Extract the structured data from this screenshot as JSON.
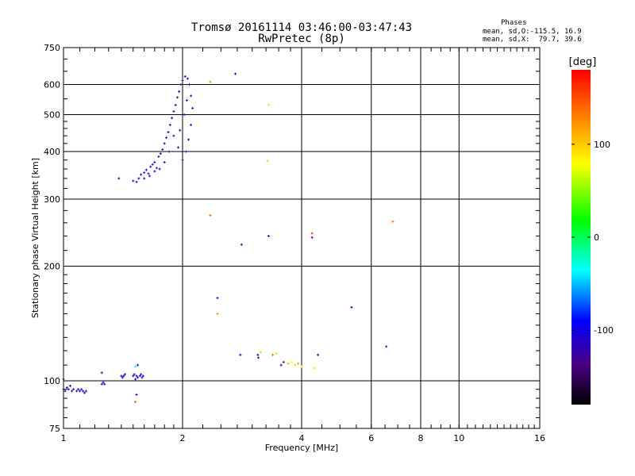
{
  "chart_data": {
    "type": "scatter",
    "title": "Tromsø 20161114 03:46:00-03:47:43",
    "subtitle": "RwPretec (8p)",
    "xlabel": "Frequency [MHz]",
    "ylabel": "Stationary phase Virtual Height [km]",
    "xscale": "log2",
    "yscale": "log",
    "xlim": [
      1,
      16
    ],
    "ylim": [
      75,
      750
    ],
    "x_ticks": [
      1,
      2,
      4,
      6,
      8,
      10,
      16
    ],
    "y_ticks": [
      75,
      100,
      200,
      300,
      400,
      500,
      600,
      750
    ],
    "grid": true,
    "phase_stats": {
      "heading": "Phases",
      "o_mode": "mean, sd,O:-115.5, 16.9",
      "x_mode": "mean, sd,X:  79.7, 39.6"
    },
    "colorbar": {
      "label": "[deg]",
      "range": [
        -180,
        180
      ],
      "ticks": [
        -100,
        0,
        100
      ]
    },
    "points": [
      {
        "x": 1.0,
        "y": 95,
        "phase": -110
      },
      {
        "x": 1.01,
        "y": 94,
        "phase": -115
      },
      {
        "x": 1.02,
        "y": 96,
        "phase": -112
      },
      {
        "x": 1.03,
        "y": 95,
        "phase": -118
      },
      {
        "x": 1.05,
        "y": 94,
        "phase": -110
      },
      {
        "x": 1.06,
        "y": 95,
        "phase": -120
      },
      {
        "x": 1.08,
        "y": 94,
        "phase": -114
      },
      {
        "x": 1.09,
        "y": 95,
        "phase": -116
      },
      {
        "x": 1.1,
        "y": 94,
        "phase": -112
      },
      {
        "x": 1.11,
        "y": 95,
        "phase": -118
      },
      {
        "x": 1.12,
        "y": 94,
        "phase": -110
      },
      {
        "x": 1.13,
        "y": 93,
        "phase": -115
      },
      {
        "x": 1.14,
        "y": 94,
        "phase": -117
      },
      {
        "x": 1.0,
        "y": 101,
        "phase": -120
      },
      {
        "x": 1.04,
        "y": 97,
        "phase": -105
      },
      {
        "x": 1.25,
        "y": 98,
        "phase": -115
      },
      {
        "x": 1.26,
        "y": 99,
        "phase": -120
      },
      {
        "x": 1.27,
        "y": 98,
        "phase": -112
      },
      {
        "x": 1.25,
        "y": 105,
        "phase": -110
      },
      {
        "x": 1.4,
        "y": 103,
        "phase": -115
      },
      {
        "x": 1.41,
        "y": 102,
        "phase": -118
      },
      {
        "x": 1.42,
        "y": 103,
        "phase": -112
      },
      {
        "x": 1.43,
        "y": 104,
        "phase": -120
      },
      {
        "x": 1.5,
        "y": 103,
        "phase": -115
      },
      {
        "x": 1.51,
        "y": 104,
        "phase": -110
      },
      {
        "x": 1.52,
        "y": 101,
        "phase": -116
      },
      {
        "x": 1.53,
        "y": 103,
        "phase": -112
      },
      {
        "x": 1.54,
        "y": 102,
        "phase": -118
      },
      {
        "x": 1.56,
        "y": 103,
        "phase": -114
      },
      {
        "x": 1.57,
        "y": 104,
        "phase": -120
      },
      {
        "x": 1.58,
        "y": 102,
        "phase": -116
      },
      {
        "x": 1.59,
        "y": 103,
        "phase": -110
      },
      {
        "x": 1.52,
        "y": 109,
        "phase": -20
      },
      {
        "x": 1.54,
        "y": 110,
        "phase": -120
      },
      {
        "x": 1.53,
        "y": 92,
        "phase": -115
      },
      {
        "x": 1.52,
        "y": 88,
        "phase": 150
      },
      {
        "x": 1.38,
        "y": 340,
        "phase": -120
      },
      {
        "x": 1.5,
        "y": 335,
        "phase": -115
      },
      {
        "x": 1.53,
        "y": 333,
        "phase": -118
      },
      {
        "x": 1.55,
        "y": 340,
        "phase": -112
      },
      {
        "x": 1.57,
        "y": 348,
        "phase": -120
      },
      {
        "x": 1.6,
        "y": 352,
        "phase": -110
      },
      {
        "x": 1.62,
        "y": 358,
        "phase": -115
      },
      {
        "x": 1.64,
        "y": 350,
        "phase": -117
      },
      {
        "x": 1.66,
        "y": 365,
        "phase": -113
      },
      {
        "x": 1.68,
        "y": 370,
        "phase": -119
      },
      {
        "x": 1.7,
        "y": 375,
        "phase": -111
      },
      {
        "x": 1.72,
        "y": 362,
        "phase": -116
      },
      {
        "x": 1.74,
        "y": 388,
        "phase": -120
      },
      {
        "x": 1.76,
        "y": 395,
        "phase": -114
      },
      {
        "x": 1.78,
        "y": 405,
        "phase": -118
      },
      {
        "x": 1.8,
        "y": 420,
        "phase": -112
      },
      {
        "x": 1.82,
        "y": 435,
        "phase": -116
      },
      {
        "x": 1.84,
        "y": 450,
        "phase": -120
      },
      {
        "x": 1.86,
        "y": 470,
        "phase": -110
      },
      {
        "x": 1.88,
        "y": 490,
        "phase": -115
      },
      {
        "x": 1.9,
        "y": 510,
        "phase": -118
      },
      {
        "x": 1.92,
        "y": 530,
        "phase": -112
      },
      {
        "x": 1.94,
        "y": 555,
        "phase": -120
      },
      {
        "x": 1.96,
        "y": 575,
        "phase": -114
      },
      {
        "x": 1.98,
        "y": 600,
        "phase": -116
      },
      {
        "x": 2.0,
        "y": 615,
        "phase": -110
      },
      {
        "x": 2.03,
        "y": 630,
        "phase": -118
      },
      {
        "x": 2.06,
        "y": 622,
        "phase": -112
      },
      {
        "x": 2.08,
        "y": 600,
        "phase": -120
      },
      {
        "x": 2.1,
        "y": 560,
        "phase": -115
      },
      {
        "x": 2.12,
        "y": 520,
        "phase": -117
      },
      {
        "x": 2.1,
        "y": 470,
        "phase": -111
      },
      {
        "x": 2.07,
        "y": 430,
        "phase": -119
      },
      {
        "x": 2.04,
        "y": 400,
        "phase": -113
      },
      {
        "x": 2.0,
        "y": 380,
        "phase": -116
      },
      {
        "x": 1.95,
        "y": 410,
        "phase": -120
      },
      {
        "x": 1.9,
        "y": 440,
        "phase": -112
      },
      {
        "x": 1.85,
        "y": 400,
        "phase": -118
      },
      {
        "x": 1.8,
        "y": 375,
        "phase": -114
      },
      {
        "x": 1.75,
        "y": 360,
        "phase": -116
      },
      {
        "x": 1.7,
        "y": 355,
        "phase": -110
      },
      {
        "x": 1.65,
        "y": 345,
        "phase": -118
      },
      {
        "x": 1.6,
        "y": 340,
        "phase": -112
      },
      {
        "x": 1.97,
        "y": 455,
        "phase": -115
      },
      {
        "x": 2.02,
        "y": 500,
        "phase": -120
      },
      {
        "x": 2.05,
        "y": 545,
        "phase": -113
      },
      {
        "x": 2.35,
        "y": 610,
        "phase": 130
      },
      {
        "x": 2.72,
        "y": 640,
        "phase": -120
      },
      {
        "x": 3.3,
        "y": 530,
        "phase": 70
      },
      {
        "x": 3.28,
        "y": 378,
        "phase": 100
      },
      {
        "x": 2.35,
        "y": 272,
        "phase": 140
      },
      {
        "x": 2.82,
        "y": 228,
        "phase": -115
      },
      {
        "x": 3.3,
        "y": 240,
        "phase": -120
      },
      {
        "x": 4.25,
        "y": 244,
        "phase": 160
      },
      {
        "x": 4.25,
        "y": 238,
        "phase": -120
      },
      {
        "x": 6.8,
        "y": 262,
        "phase": 140
      },
      {
        "x": 2.45,
        "y": 165,
        "phase": -120
      },
      {
        "x": 2.45,
        "y": 150,
        "phase": 120
      },
      {
        "x": 2.8,
        "y": 117,
        "phase": -115
      },
      {
        "x": 3.1,
        "y": 117,
        "phase": -120
      },
      {
        "x": 3.11,
        "y": 115,
        "phase": -118
      },
      {
        "x": 3.15,
        "y": 119,
        "phase": 100
      },
      {
        "x": 3.38,
        "y": 117,
        "phase": 140
      },
      {
        "x": 3.45,
        "y": 118,
        "phase": 60
      },
      {
        "x": 3.55,
        "y": 110,
        "phase": -115
      },
      {
        "x": 3.6,
        "y": 112,
        "phase": -120
      },
      {
        "x": 3.7,
        "y": 111,
        "phase": 110
      },
      {
        "x": 3.78,
        "y": 112,
        "phase": 80
      },
      {
        "x": 3.85,
        "y": 110,
        "phase": 100
      },
      {
        "x": 3.92,
        "y": 111,
        "phase": 120
      },
      {
        "x": 4.0,
        "y": 109,
        "phase": 90
      },
      {
        "x": 4.3,
        "y": 108,
        "phase": 60
      },
      {
        "x": 4.4,
        "y": 117,
        "phase": -120
      },
      {
        "x": 5.35,
        "y": 156,
        "phase": -110
      },
      {
        "x": 6.55,
        "y": 123,
        "phase": -115
      }
    ]
  }
}
